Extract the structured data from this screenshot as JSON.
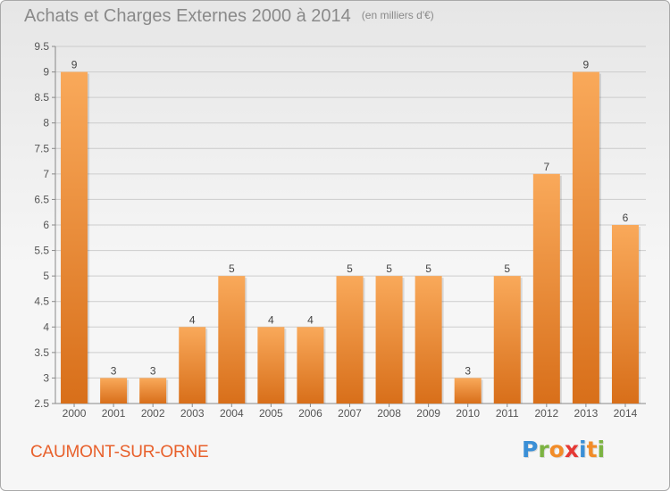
{
  "header": {
    "title": "Achats et Charges Externes 2000 à 2014",
    "unit": "(en milliers d'€)"
  },
  "footer": {
    "commune": "CAUMONT-SUR-ORNE",
    "logo": [
      "P",
      "r",
      "o",
      "x",
      "i",
      "t",
      "i"
    ]
  },
  "colors": {
    "bar_light": "#f9a95a",
    "bar_dark": "#d86f1a",
    "grid": "#cccccc",
    "commune": "#e8602b",
    "logo": [
      "#3a8fd6",
      "#7cb342",
      "#f28c28",
      "#e53935",
      "#3a8fd6",
      "#f28c28",
      "#7cb342"
    ]
  },
  "chart_data": {
    "type": "bar",
    "title": "Achats et Charges Externes 2000 à 2014",
    "subtitle": "(en milliers d'€)",
    "xlabel": "",
    "ylabel": "",
    "categories": [
      "2000",
      "2001",
      "2002",
      "2003",
      "2004",
      "2005",
      "2006",
      "2007",
      "2008",
      "2009",
      "2010",
      "2011",
      "2012",
      "2013",
      "2014"
    ],
    "values": [
      9,
      3,
      3,
      4,
      5,
      4,
      4,
      5,
      5,
      5,
      3,
      5,
      7,
      9,
      6
    ],
    "ylim": [
      2.5,
      9.5
    ],
    "yticks": [
      "2.5",
      "3",
      "3.5",
      "4",
      "4.5",
      "5",
      "5.5",
      "6",
      "6.5",
      "7",
      "7.5",
      "8",
      "8.5",
      "9",
      "9.5"
    ],
    "grid": true,
    "legend": "none"
  }
}
